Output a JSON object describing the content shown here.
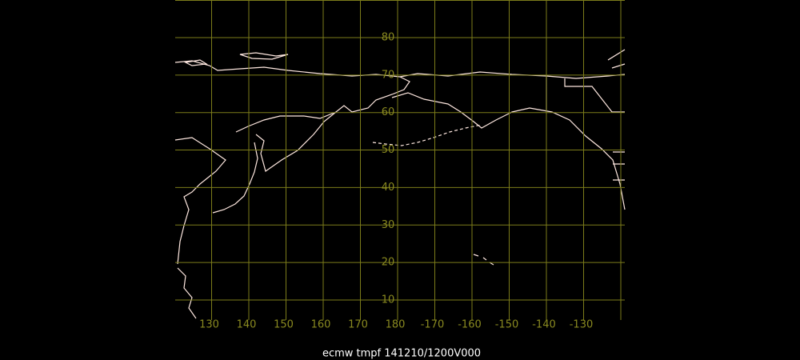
{
  "map": {
    "latitudes": [
      90,
      80,
      70,
      60,
      50,
      40,
      30,
      20,
      10
    ],
    "lat_labels": [
      80,
      70,
      60,
      50,
      40,
      30,
      20,
      10
    ],
    "longitudes": [
      120,
      130,
      140,
      150,
      160,
      170,
      180,
      -170,
      -160,
      -150,
      -140,
      -130,
      -120
    ],
    "lon_labels": [
      130,
      140,
      150,
      160,
      170,
      180,
      -170,
      -160,
      -150,
      -140,
      -130
    ],
    "caption": "ecmw tmpf 141210/1200V000"
  }
}
